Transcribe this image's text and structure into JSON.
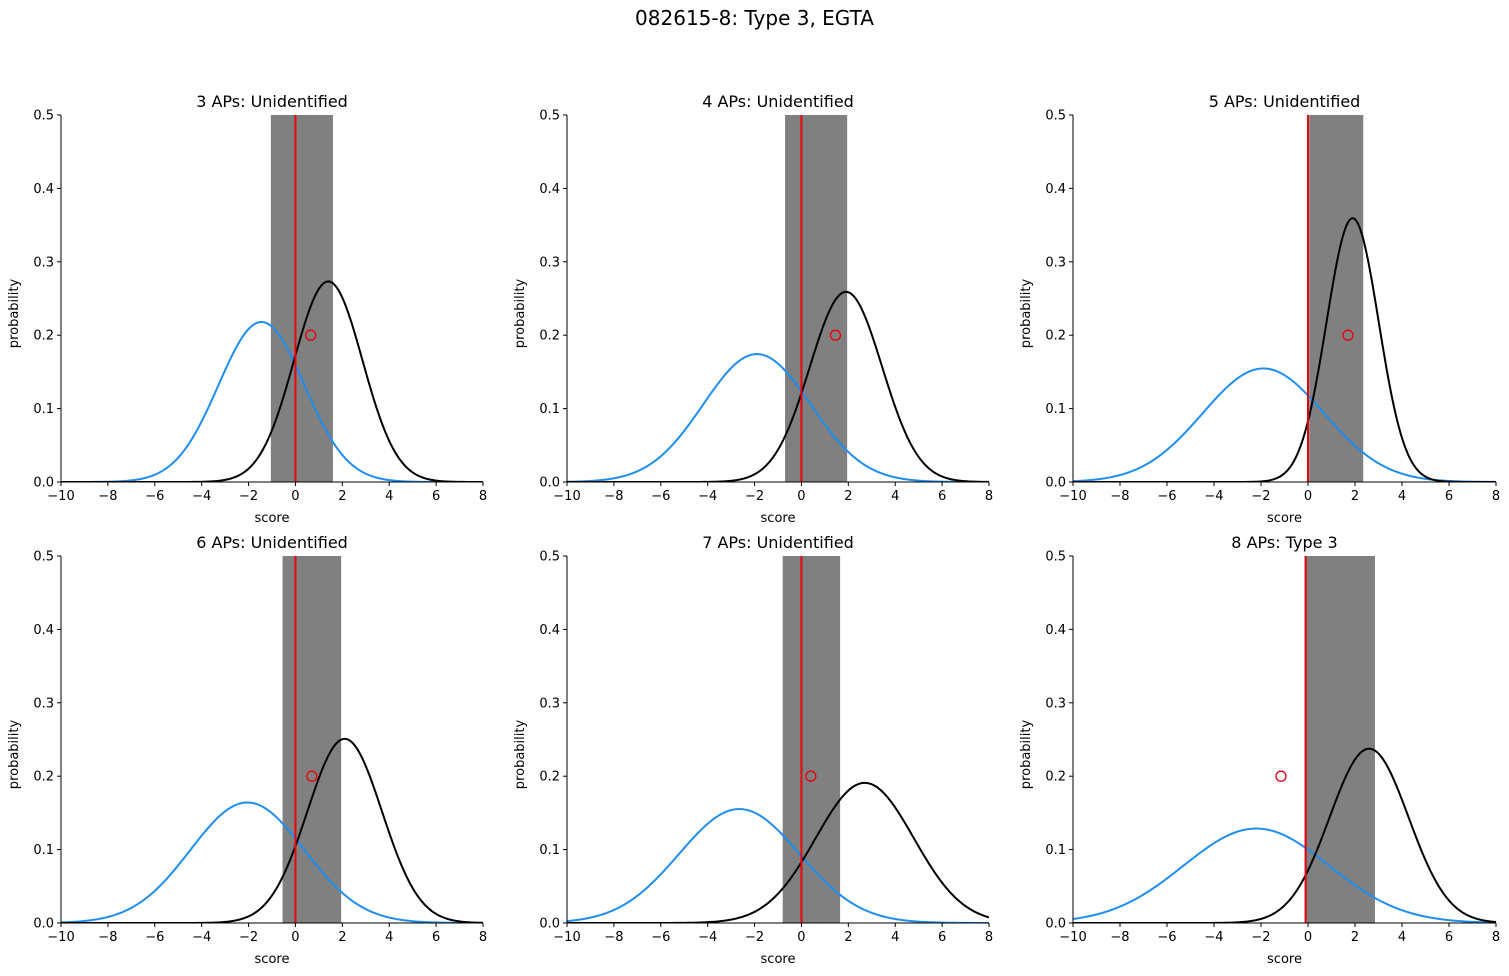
{
  "figure": {
    "suptitle": "082615-8: Type 3, EGTA",
    "colors": {
      "series_a": "#1f8ef1",
      "series_b": "#000000",
      "threshold": "#e8000b",
      "band": "#808080",
      "marker": "#e8000b"
    }
  },
  "chart_data": [
    {
      "type": "line",
      "title": "3 APs: Unidentified",
      "xlabel": "score",
      "ylabel": "probability",
      "xlim": [
        -10,
        8
      ],
      "ylim": [
        0,
        0.5
      ],
      "xticks": [
        -10,
        -8,
        -6,
        -4,
        -2,
        0,
        2,
        4,
        6,
        8
      ],
      "yticks": [
        0.0,
        0.1,
        0.2,
        0.3,
        0.4,
        0.5
      ],
      "grid": false,
      "series": [
        {
          "color": "#1f8ef1",
          "mean": -1.45,
          "sd": 1.83
        },
        {
          "color": "#000000",
          "mean": 1.4,
          "sd": 1.46
        }
      ],
      "threshold_x": 0,
      "band": [
        -1.05,
        1.6
      ],
      "marker": {
        "x": 0.65,
        "y": 0.2
      }
    },
    {
      "type": "line",
      "title": "4 APs: Unidentified",
      "xlabel": "score",
      "ylabel": "probability",
      "xlim": [
        -10,
        8
      ],
      "ylim": [
        0,
        0.5
      ],
      "xticks": [
        -10,
        -8,
        -6,
        -4,
        -2,
        0,
        2,
        4,
        6,
        8
      ],
      "yticks": [
        0.0,
        0.1,
        0.2,
        0.3,
        0.4,
        0.5
      ],
      "grid": false,
      "series": [
        {
          "color": "#1f8ef1",
          "mean": -1.9,
          "sd": 2.29
        },
        {
          "color": "#000000",
          "mean": 1.9,
          "sd": 1.54
        }
      ],
      "threshold_x": 0,
      "band": [
        -0.7,
        1.95
      ],
      "marker": {
        "x": 1.45,
        "y": 0.2
      }
    },
    {
      "type": "line",
      "title": "5 APs: Unidentified",
      "xlabel": "score",
      "ylabel": "probability",
      "xlim": [
        -10,
        8
      ],
      "ylim": [
        0,
        0.5
      ],
      "xticks": [
        -10,
        -8,
        -6,
        -4,
        -2,
        0,
        2,
        4,
        6,
        8
      ],
      "yticks": [
        0.0,
        0.1,
        0.2,
        0.3,
        0.4,
        0.5
      ],
      "grid": false,
      "series": [
        {
          "color": "#1f8ef1",
          "mean": -1.9,
          "sd": 2.58
        },
        {
          "color": "#000000",
          "mean": 1.9,
          "sd": 1.11
        }
      ],
      "threshold_x": 0,
      "band": [
        0.05,
        2.35
      ],
      "marker": {
        "x": 1.7,
        "y": 0.2
      }
    },
    {
      "type": "line",
      "title": "6 APs: Unidentified",
      "xlabel": "score",
      "ylabel": "probability",
      "xlim": [
        -10,
        8
      ],
      "ylim": [
        0,
        0.5
      ],
      "xticks": [
        -10,
        -8,
        -6,
        -4,
        -2,
        0,
        2,
        4,
        6,
        8
      ],
      "yticks": [
        0.0,
        0.1,
        0.2,
        0.3,
        0.4,
        0.5
      ],
      "grid": false,
      "series": [
        {
          "color": "#1f8ef1",
          "mean": -2.05,
          "sd": 2.43
        },
        {
          "color": "#000000",
          "mean": 2.1,
          "sd": 1.59
        }
      ],
      "threshold_x": 0,
      "band": [
        -0.55,
        1.95
      ],
      "marker": {
        "x": 0.7,
        "y": 0.2
      }
    },
    {
      "type": "line",
      "title": "7 APs: Unidentified",
      "xlabel": "score",
      "ylabel": "probability",
      "xlim": [
        -10,
        8
      ],
      "ylim": [
        0,
        0.5
      ],
      "xticks": [
        -10,
        -8,
        -6,
        -4,
        -2,
        0,
        2,
        4,
        6,
        8
      ],
      "yticks": [
        0.0,
        0.1,
        0.2,
        0.3,
        0.4,
        0.5
      ],
      "grid": false,
      "series": [
        {
          "color": "#1f8ef1",
          "mean": -2.65,
          "sd": 2.57
        },
        {
          "color": "#000000",
          "mean": 2.7,
          "sd": 2.09
        }
      ],
      "threshold_x": 0,
      "band": [
        -0.8,
        1.65
      ],
      "marker": {
        "x": 0.4,
        "y": 0.2
      }
    },
    {
      "type": "line",
      "title": "8 APs: Type 3",
      "xlabel": "score",
      "ylabel": "probability",
      "xlim": [
        -10,
        8
      ],
      "ylim": [
        0,
        0.5
      ],
      "xticks": [
        -10,
        -8,
        -6,
        -4,
        -2,
        0,
        2,
        4,
        6,
        8
      ],
      "yticks": [
        0.0,
        0.1,
        0.2,
        0.3,
        0.4,
        0.5
      ],
      "grid": false,
      "series": [
        {
          "color": "#1f8ef1",
          "mean": -2.2,
          "sd": 3.1
        },
        {
          "color": "#000000",
          "mean": 2.6,
          "sd": 1.68
        }
      ],
      "threshold_x": -0.1,
      "band": [
        -0.15,
        2.85
      ],
      "marker": {
        "x": -1.15,
        "y": 0.2
      }
    }
  ]
}
